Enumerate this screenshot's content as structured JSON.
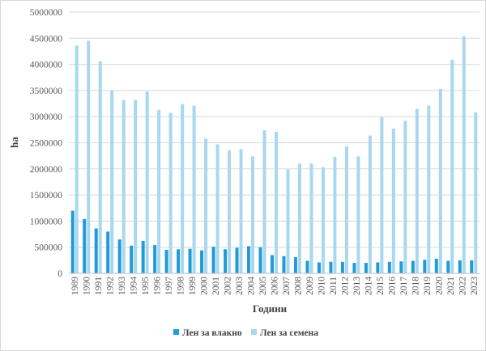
{
  "chart_data": {
    "type": "bar",
    "title": "",
    "xlabel": "Години",
    "ylabel": "ha",
    "ylim": [
      0,
      5000000
    ],
    "yticks": [
      0,
      500000,
      1000000,
      1500000,
      2000000,
      2500000,
      3000000,
      3500000,
      4000000,
      4500000,
      5000000
    ],
    "ytick_labels": [
      "0",
      "500000",
      "1000000",
      "1500000",
      "2000000",
      "2500000",
      "3000000",
      "3500000",
      "4000000",
      "4500000",
      "5000000"
    ],
    "grid": true,
    "legend_position": "bottom",
    "categories": [
      "1989",
      "1990",
      "1991",
      "1992",
      "1993",
      "1994",
      "1995",
      "1996",
      "1997",
      "1998",
      "1999",
      "2000",
      "2001",
      "2002",
      "2003",
      "2004",
      "2005",
      "2006",
      "2007",
      "2008",
      "2009",
      "2010",
      "2011",
      "2012",
      "2013",
      "2014",
      "2015",
      "2016",
      "2017",
      "2018",
      "2019",
      "2020",
      "2021",
      "2022",
      "2023"
    ],
    "series": [
      {
        "name": "Лен за влакно",
        "color": "#1f9bd7",
        "values": [
          1200000,
          1040000,
          860000,
          800000,
          650000,
          530000,
          620000,
          540000,
          450000,
          460000,
          470000,
          440000,
          510000,
          460000,
          490000,
          520000,
          500000,
          350000,
          330000,
          310000,
          240000,
          210000,
          220000,
          220000,
          200000,
          200000,
          210000,
          220000,
          230000,
          240000,
          260000,
          280000,
          240000,
          250000,
          250000
        ]
      },
      {
        "name": "Лен за семена",
        "color": "#a8d8ef",
        "values": [
          4360000,
          4450000,
          4060000,
          3500000,
          3320000,
          3320000,
          3480000,
          3130000,
          3070000,
          3240000,
          3210000,
          2580000,
          2470000,
          2360000,
          2380000,
          2240000,
          2740000,
          2710000,
          1990000,
          2100000,
          2100000,
          2030000,
          2230000,
          2430000,
          2240000,
          2640000,
          2990000,
          2770000,
          2920000,
          3150000,
          3210000,
          3530000,
          4090000,
          4540000,
          3080000
        ]
      }
    ]
  }
}
